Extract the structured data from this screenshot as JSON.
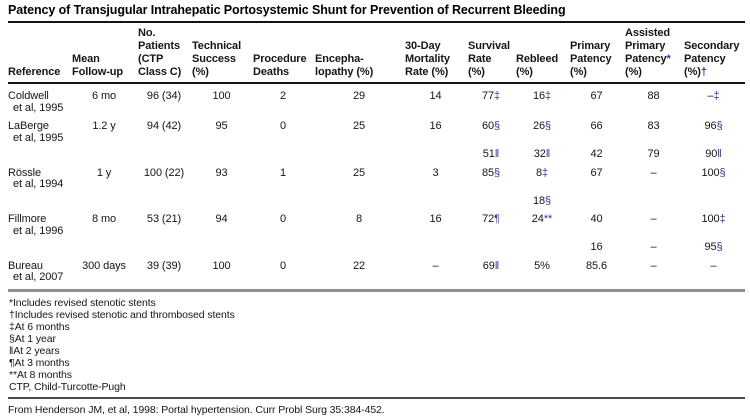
{
  "title": "Patency of Transjugular Intrahepatic Portosystemic Shunt for Prevention of Recurrent Bleeding",
  "colors": {
    "footnote_marker_blue": "#32379f"
  },
  "table": {
    "columns": [
      {
        "id": "reference",
        "lines": [
          "Reference"
        ]
      },
      {
        "id": "mean-follow-up",
        "lines": [
          "Mean",
          "Follow-up"
        ]
      },
      {
        "id": "no-patients-ctp-class-c",
        "lines": [
          "No.",
          "Patients",
          "(CTP",
          "Class C)"
        ]
      },
      {
        "id": "technical-success",
        "lines": [
          "Technical",
          "Success",
          "(%)"
        ]
      },
      {
        "id": "procedure-deaths",
        "lines": [
          "Procedure",
          "Deaths"
        ]
      },
      {
        "id": "encephalopathy",
        "lines": [
          "Encepha-",
          "lopathy (%)"
        ]
      },
      {
        "id": "30-day-mortality-rate",
        "lines": [
          "30-Day",
          "Mortality",
          "Rate (%)"
        ]
      },
      {
        "id": "survival-rate",
        "lines": [
          "Survival",
          "Rate",
          "(%)"
        ]
      },
      {
        "id": "rebleed",
        "lines": [
          "Rebleed",
          "(%)"
        ]
      },
      {
        "id": "primary-patency",
        "lines": [
          "Primary",
          "Patency",
          "(%)"
        ]
      },
      {
        "id": "assisted-primary-patency",
        "lines": [
          "Assisted",
          "Primary",
          "Patency*",
          "(%)"
        ]
      },
      {
        "id": "secondary-patency",
        "lines": [
          "Secondary",
          "Patency",
          "(%)†"
        ]
      }
    ],
    "rows": [
      {
        "type": "main",
        "reference": [
          "Coldwell",
          "et al, 1995"
        ],
        "values": [
          "6 mo",
          "96 (34)",
          "100",
          "2",
          "29",
          "14",
          "77‡",
          "16‡",
          "67",
          "88",
          "–‡"
        ]
      },
      {
        "type": "main",
        "reference": [
          "LaBerge",
          "et al, 1995"
        ],
        "values": [
          "1.2 y",
          "94 (42)",
          "95",
          "0",
          "25",
          "16",
          "60§",
          "26§",
          "66",
          "83",
          "96§"
        ]
      },
      {
        "type": "sub",
        "reference": [],
        "values": [
          "",
          "",
          "",
          "",
          "",
          "",
          "51‖",
          "32‖",
          "42",
          "79",
          "90‖"
        ]
      },
      {
        "type": "main",
        "reference": [
          "Rössle",
          "et al, 1994"
        ],
        "values": [
          "1 y",
          "100 (22)",
          "93",
          "1",
          "25",
          "3",
          "85§",
          "8‡",
          "67",
          "–",
          "100§"
        ]
      },
      {
        "type": "sub",
        "reference": [],
        "values": [
          "",
          "",
          "",
          "",
          "",
          "",
          "",
          "18§",
          "",
          "",
          ""
        ]
      },
      {
        "type": "main",
        "reference": [
          "Fillmore",
          "et al, 1996"
        ],
        "values": [
          "8 mo",
          "53 (21)",
          "94",
          "0",
          "8",
          "16",
          "72¶",
          "24**",
          "40",
          "–",
          "100‡"
        ]
      },
      {
        "type": "sub",
        "reference": [],
        "values": [
          "",
          "",
          "",
          "",
          "",
          "",
          "",
          "",
          "16",
          "–",
          "95§"
        ]
      },
      {
        "type": "main",
        "reference": [
          "Bureau",
          "et al, 2007"
        ],
        "values": [
          "300 days",
          "39 (39)",
          "100",
          "0",
          "22",
          "–",
          "69‖",
          "5%",
          "85.6",
          "–",
          "–"
        ]
      }
    ]
  },
  "footnotes": [
    "*Includes revised stenotic stents",
    "†Includes revised stenotic and thrombosed stents",
    "‡At 6 months",
    "§At 1 year",
    "‖At 2 years",
    "¶At 3 months",
    "**At 8 months",
    "CTP, Child-Turcotte-Pugh"
  ],
  "source": "From Henderson JM, et al, 1998: Portal hypertension. Curr Probl Surg 35:384-452."
}
